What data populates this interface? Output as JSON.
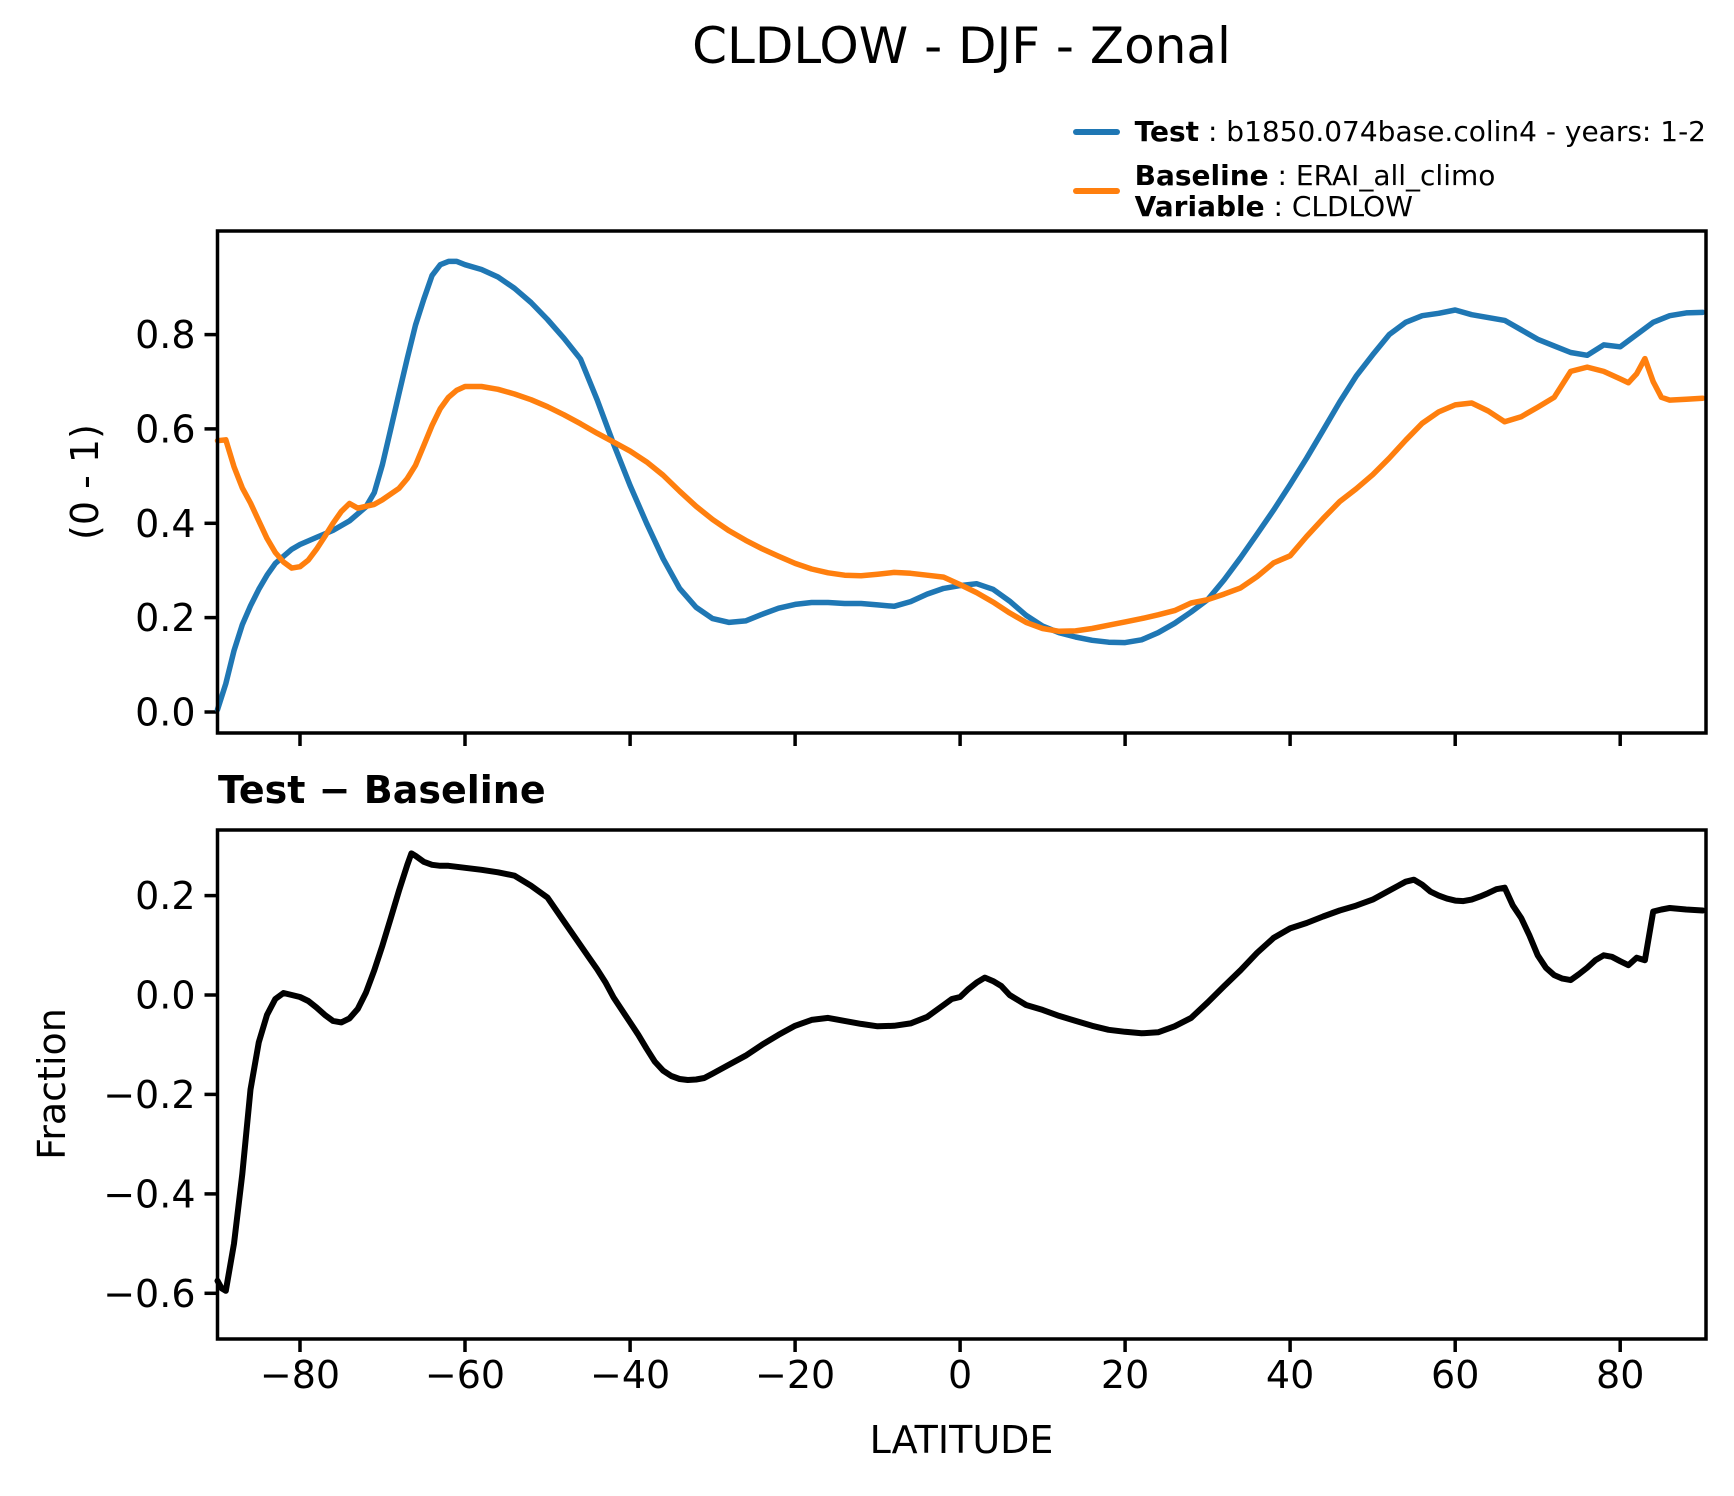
{
  "title": "CLDLOW - DJF - Zonal",
  "legend": {
    "test_label_bold": "Test",
    "test_label_rest": " : b1850.074base.colin4 - years: 1-2",
    "baseline_label_bold": "Baseline",
    "baseline_label_rest": " : ERAI_all_climo",
    "variable_label_bold": "Variable",
    "variable_label_rest": " : CLDLOW",
    "test_color": "#1f77b4",
    "baseline_color": "#ff7f0e"
  },
  "chart_data": {
    "type": "line",
    "xlabel": "LATITUDE",
    "xlim": [
      -90,
      90.4
    ],
    "xticks": [
      -80,
      -60,
      -40,
      -20,
      0,
      20,
      40,
      60,
      80
    ],
    "grid": false,
    "legend_position": "top-right-outside",
    "panels": [
      {
        "name": "zonal-mean",
        "ylabel": "(0 - 1)",
        "ylim": [
          -0.0445,
          1.0195
        ],
        "yticks": [
          0.0,
          0.2,
          0.4,
          0.6,
          0.8
        ],
        "series": [
          {
            "name": "Test",
            "label": "b1850.074base.colin4 - years: 1-2",
            "color": "#1f77b4",
            "lats": [
              -90,
              -89,
              -88,
              -87,
              -86,
              -85,
              -84,
              -83,
              -82,
              -81,
              -80,
              -78,
              -76,
              -74,
              -72,
              -71,
              -70,
              -69,
              -68,
              -67,
              -66,
              -65,
              -64,
              -63,
              -62,
              -61,
              -60,
              -58,
              -56,
              -54,
              -52,
              -50,
              -48,
              -46,
              -44,
              -42,
              -40,
              -38,
              -36,
              -34,
              -32,
              -30,
              -28,
              -26,
              -24,
              -22,
              -20,
              -18,
              -16,
              -14,
              -12,
              -10,
              -8,
              -6,
              -4,
              -2,
              0,
              2,
              4,
              6,
              8,
              10,
              12,
              14,
              16,
              18,
              20,
              22,
              24,
              26,
              28,
              30,
              32,
              34,
              36,
              38,
              40,
              42,
              44,
              46,
              48,
              50,
              52,
              54,
              56,
              58,
              60,
              62,
              64,
              66,
              68,
              70,
              72,
              74,
              76,
              78,
              80,
              82,
              84,
              86,
              88,
              90
            ],
            "values": [
              0.005,
              0.06,
              0.13,
              0.185,
              0.225,
              0.26,
              0.29,
              0.315,
              0.33,
              0.345,
              0.355,
              0.37,
              0.385,
              0.405,
              0.435,
              0.465,
              0.525,
              0.6,
              0.675,
              0.75,
              0.82,
              0.875,
              0.925,
              0.948,
              0.955,
              0.955,
              0.948,
              0.938,
              0.922,
              0.898,
              0.868,
              0.832,
              0.792,
              0.748,
              0.662,
              0.568,
              0.48,
              0.4,
              0.325,
              0.262,
              0.222,
              0.198,
              0.19,
              0.193,
              0.207,
              0.22,
              0.228,
              0.232,
              0.232,
              0.23,
              0.23,
              0.227,
              0.224,
              0.234,
              0.25,
              0.262,
              0.268,
              0.272,
              0.26,
              0.235,
              0.205,
              0.182,
              0.168,
              0.159,
              0.152,
              0.148,
              0.147,
              0.153,
              0.168,
              0.188,
              0.212,
              0.238,
              0.28,
              0.327,
              0.377,
              0.428,
              0.482,
              0.538,
              0.597,
              0.657,
              0.712,
              0.757,
              0.8,
              0.826,
              0.84,
              0.845,
              0.852,
              0.842,
              0.836,
              0.83,
              0.81,
              0.79,
              0.776,
              0.762,
              0.756,
              0.778,
              0.774,
              0.8,
              0.826,
              0.84,
              0.846,
              0.847
            ]
          },
          {
            "name": "Baseline",
            "label": "ERAI_all_climo",
            "color": "#ff7f0e",
            "lats": [
              -90,
              -89,
              -88,
              -87,
              -86,
              -85,
              -84,
              -83,
              -82,
              -81,
              -80,
              -79,
              -78,
              -77,
              -76,
              -75,
              -74,
              -73,
              -72,
              -71,
              -70,
              -69,
              -68,
              -67,
              -66,
              -65,
              -64,
              -63,
              -62,
              -61,
              -60,
              -58,
              -56,
              -54,
              -52,
              -50,
              -48,
              -46,
              -44,
              -42,
              -40,
              -38,
              -36,
              -34,
              -32,
              -30,
              -28,
              -26,
              -24,
              -22,
              -20,
              -18,
              -16,
              -14,
              -12,
              -10,
              -8,
              -6,
              -4,
              -2,
              0,
              2,
              4,
              6,
              8,
              10,
              12,
              14,
              16,
              18,
              20,
              22,
              24,
              26,
              28,
              30,
              32,
              34,
              36,
              38,
              40,
              42,
              44,
              46,
              48,
              50,
              52,
              54,
              56,
              58,
              60,
              62,
              64,
              66,
              68,
              70,
              72,
              74,
              76,
              78,
              80,
              81,
              82,
              83,
              84,
              85,
              86,
              88,
              90
            ],
            "values": [
              0.575,
              0.577,
              0.52,
              0.475,
              0.443,
              0.405,
              0.368,
              0.338,
              0.318,
              0.305,
              0.308,
              0.322,
              0.345,
              0.372,
              0.4,
              0.425,
              0.442,
              0.432,
              0.436,
              0.44,
              0.45,
              0.462,
              0.474,
              0.495,
              0.523,
              0.565,
              0.607,
              0.643,
              0.667,
              0.682,
              0.69,
              0.69,
              0.684,
              0.674,
              0.662,
              0.647,
              0.63,
              0.611,
              0.591,
              0.572,
              0.553,
              0.53,
              0.502,
              0.468,
              0.436,
              0.408,
              0.384,
              0.364,
              0.346,
              0.33,
              0.315,
              0.303,
              0.295,
              0.29,
              0.289,
              0.292,
              0.296,
              0.294,
              0.29,
              0.286,
              0.27,
              0.253,
              0.233,
              0.21,
              0.19,
              0.177,
              0.171,
              0.172,
              0.177,
              0.184,
              0.191,
              0.198,
              0.206,
              0.215,
              0.231,
              0.238,
              0.25,
              0.263,
              0.287,
              0.316,
              0.331,
              0.372,
              0.41,
              0.446,
              0.473,
              0.503,
              0.538,
              0.576,
              0.612,
              0.636,
              0.651,
              0.655,
              0.638,
              0.615,
              0.626,
              0.646,
              0.667,
              0.722,
              0.731,
              0.722,
              0.706,
              0.698,
              0.717,
              0.749,
              0.7,
              0.667,
              0.661,
              0.663,
              0.665
            ]
          }
        ]
      },
      {
        "name": "difference",
        "title": "Test − Baseline",
        "ylabel": "Fraction",
        "ylim": [
          -0.692,
          0.332
        ],
        "yticks": [
          0.2,
          0.0,
          -0.2,
          -0.4,
          -0.6
        ],
        "series": [
          {
            "name": "Test - Baseline",
            "color": "#000000",
            "lats": [
              -90,
              -89.5,
              -89,
              -88,
              -87,
              -86,
              -85,
              -84,
              -83,
              -82,
              -81,
              -80,
              -79,
              -78,
              -77,
              -76,
              -75,
              -74,
              -73,
              -72,
              -71,
              -70,
              -69,
              -68,
              -67,
              -66.5,
              -66,
              -65,
              -64,
              -63,
              -62,
              -61,
              -60,
              -58,
              -56,
              -54,
              -52,
              -50,
              -48,
              -46,
              -45,
              -44,
              -43,
              -42,
              -41,
              -40,
              -39,
              -38,
              -37,
              -36,
              -35,
              -34,
              -33,
              -32,
              -31,
              -30,
              -28,
              -26,
              -24,
              -22,
              -20,
              -18,
              -16,
              -14,
              -12,
              -10,
              -8,
              -6,
              -4,
              -2,
              -1,
              0,
              1,
              2,
              3,
              4,
              5,
              6,
              8,
              10,
              12,
              14,
              16,
              18,
              20,
              22,
              24,
              26,
              28,
              30,
              32,
              34,
              36,
              38,
              40,
              42,
              44,
              46,
              48,
              50,
              52,
              54,
              55,
              56,
              57,
              58,
              59,
              60,
              61,
              62,
              63,
              64,
              65,
              66,
              67,
              68,
              69,
              70,
              71,
              72,
              73,
              74,
              75,
              76,
              77,
              78,
              79,
              80,
              81,
              82,
              83,
              84,
              85,
              86,
              88,
              90
            ],
            "values": [
              -0.575,
              -0.59,
              -0.595,
              -0.5,
              -0.36,
              -0.19,
              -0.095,
              -0.04,
              -0.008,
              0.004,
              0.0,
              -0.004,
              -0.012,
              -0.025,
              -0.04,
              -0.052,
              -0.055,
              -0.047,
              -0.028,
              0.005,
              0.05,
              0.1,
              0.155,
              0.21,
              0.262,
              0.285,
              0.28,
              0.268,
              0.262,
              0.26,
              0.26,
              0.258,
              0.256,
              0.252,
              0.247,
              0.24,
              0.22,
              0.196,
              0.148,
              0.1,
              0.076,
              0.052,
              0.026,
              -0.005,
              -0.03,
              -0.055,
              -0.08,
              -0.108,
              -0.134,
              -0.152,
              -0.163,
              -0.169,
              -0.171,
              -0.17,
              -0.167,
              -0.158,
              -0.14,
              -0.122,
              -0.1,
              -0.08,
              -0.062,
              -0.05,
              -0.046,
              -0.052,
              -0.058,
              -0.063,
              -0.062,
              -0.057,
              -0.044,
              -0.02,
              -0.008,
              -0.004,
              0.012,
              0.025,
              0.035,
              0.028,
              0.018,
              0.0,
              -0.02,
              -0.03,
              -0.042,
              -0.052,
              -0.062,
              -0.07,
              -0.074,
              -0.077,
              -0.075,
              -0.063,
              -0.046,
              -0.015,
              0.018,
              0.05,
              0.085,
              0.115,
              0.134,
              0.145,
              0.158,
              0.17,
              0.18,
              0.192,
              0.21,
              0.228,
              0.232,
              0.222,
              0.208,
              0.2,
              0.194,
              0.19,
              0.189,
              0.192,
              0.198,
              0.205,
              0.213,
              0.216,
              0.18,
              0.155,
              0.12,
              0.08,
              0.055,
              0.04,
              0.033,
              0.03,
              0.042,
              0.055,
              0.07,
              0.08,
              0.077,
              0.068,
              0.06,
              0.075,
              0.07,
              0.168,
              0.172,
              0.175,
              0.172,
              0.17
            ]
          }
        ]
      }
    ]
  }
}
